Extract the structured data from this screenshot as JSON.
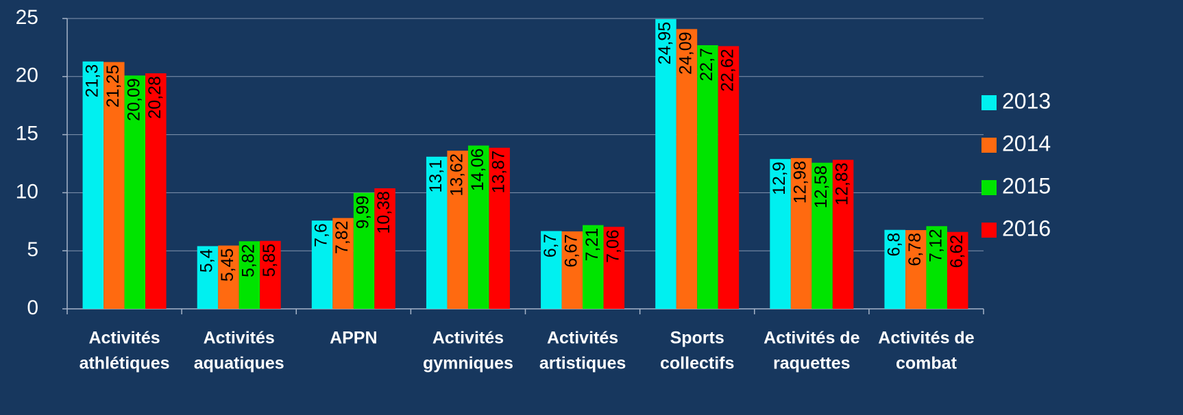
{
  "chart_data": {
    "type": "bar",
    "categories": [
      [
        "Activités",
        "athlétiques"
      ],
      [
        "Activités",
        "aquatiques"
      ],
      [
        "APPN"
      ],
      [
        "Activités",
        "gymniques"
      ],
      [
        "Activités",
        "artistiques"
      ],
      [
        "Sports",
        "collectifs"
      ],
      [
        "Activités de",
        "raquettes"
      ],
      [
        "Activités de",
        "combat"
      ]
    ],
    "series": [
      {
        "name": "2013",
        "color": "#00f0f0",
        "values": [
          21.3,
          5.4,
          7.6,
          13.1,
          6.7,
          24.95,
          12.9,
          6.8
        ],
        "value_labels": [
          "21,3",
          "5,4",
          "7,6",
          "13,1",
          "6,7",
          "24,95",
          "12,9",
          "6,8"
        ]
      },
      {
        "name": "2014",
        "color": "#ff6a10",
        "values": [
          21.25,
          5.45,
          7.82,
          13.62,
          6.67,
          24.09,
          12.98,
          6.78
        ],
        "value_labels": [
          "21,25",
          "5,45",
          "7,82",
          "13,62",
          "6,67",
          "24,09",
          "12,98",
          "6,78"
        ]
      },
      {
        "name": "2015",
        "color": "#00e400",
        "values": [
          20.09,
          5.82,
          9.99,
          14.06,
          7.21,
          22.7,
          12.58,
          7.12
        ],
        "value_labels": [
          "20,09",
          "5,82",
          "9,99",
          "14,06",
          "7,21",
          "22,7",
          "12,58",
          "7,12"
        ]
      },
      {
        "name": "2016",
        "color": "#ff0000",
        "values": [
          20.28,
          5.85,
          10.38,
          13.87,
          7.06,
          22.62,
          12.83,
          6.62
        ],
        "value_labels": [
          "20,28",
          "5,85",
          "10,38",
          "13,87",
          "7,06",
          "22,62",
          "12,83",
          "6,62"
        ]
      }
    ],
    "ylim": [
      0,
      25
    ],
    "yticks": [
      0,
      5,
      10,
      15,
      20,
      25
    ],
    "grid": true,
    "legend": "right"
  }
}
